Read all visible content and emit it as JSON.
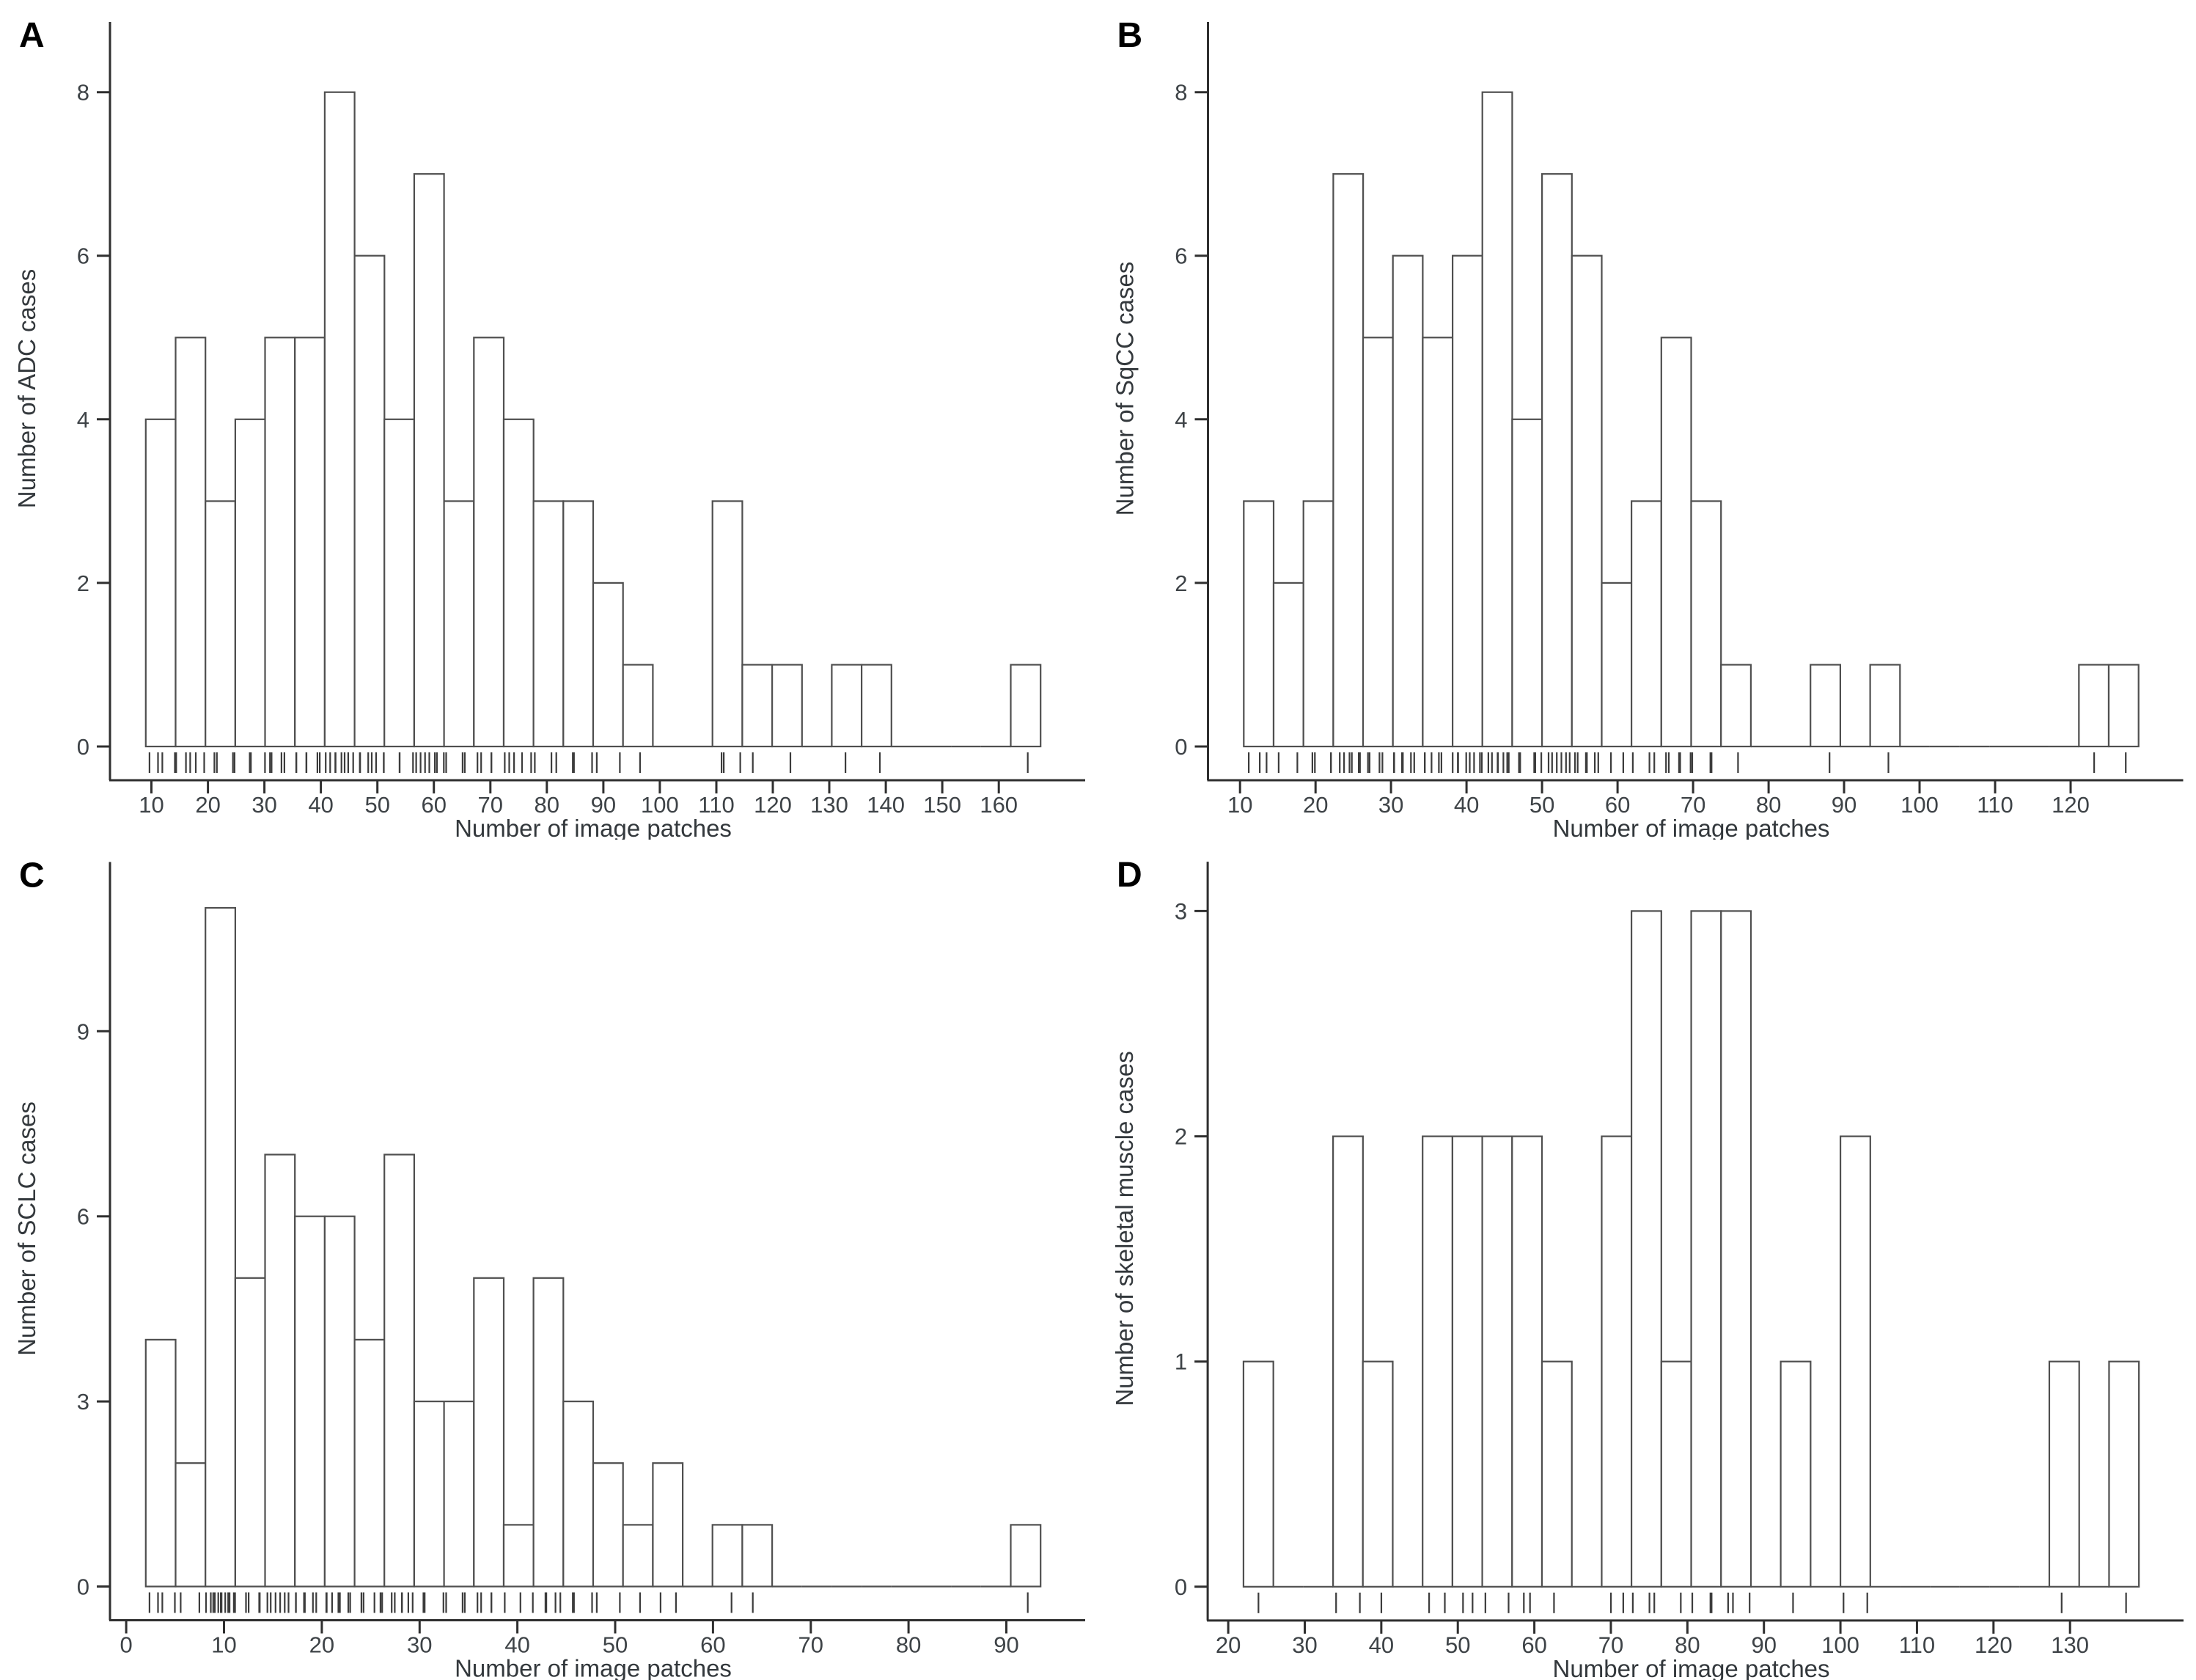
{
  "figure": {
    "title": "",
    "layout": "2x2-histogram-grid",
    "colors": {
      "background": "#ffffff",
      "bar_fill": "#ffffff",
      "bar_stroke": "#4f4f4f",
      "axis_line": "#2f2f2f",
      "tick_text": "#3e4347",
      "axis_title_text": "#33383c",
      "rug_mark": "#3c3c3c",
      "panel_letter": "#000000"
    }
  },
  "chart_data": [
    {
      "type": "bar",
      "subtype": "histogram",
      "panel_letter": "A",
      "xlabel": "Number of image patches",
      "ylabel": "Number of ADC cases",
      "bin_start": 9,
      "bin_width": 5.28,
      "counts": [
        4,
        5,
        3,
        4,
        5,
        5,
        8,
        6,
        4,
        7,
        3,
        5,
        4,
        3,
        3,
        2,
        1,
        0,
        0,
        3,
        1,
        1,
        0,
        1,
        1,
        0,
        0,
        0,
        0,
        1
      ],
      "x_ticks": [
        10,
        20,
        30,
        40,
        50,
        60,
        70,
        80,
        90,
        100,
        110,
        120,
        130,
        140,
        150,
        160
      ],
      "y_ticks": [
        0,
        2,
        4,
        6,
        8
      ],
      "y_domain": [
        0,
        8.75
      ],
      "rug": true,
      "grid": false,
      "legend": "none"
    },
    {
      "type": "bar",
      "subtype": "histogram",
      "panel_letter": "B",
      "xlabel": "Number of image patches",
      "ylabel": "Number of SqCC cases",
      "bin_start": 10.5,
      "bin_width": 3.95,
      "counts": [
        3,
        2,
        3,
        7,
        5,
        6,
        5,
        6,
        8,
        4,
        7,
        6,
        2,
        3,
        5,
        3,
        1,
        0,
        0,
        1,
        0,
        1,
        0,
        0,
        0,
        0,
        0,
        0,
        1,
        1
      ],
      "x_ticks": [
        10,
        20,
        30,
        40,
        50,
        60,
        70,
        80,
        90,
        100,
        110,
        120
      ],
      "y_ticks": [
        0,
        2,
        4,
        6,
        8
      ],
      "y_domain": [
        0,
        8.75
      ],
      "rug": true,
      "grid": false,
      "legend": "none"
    },
    {
      "type": "bar",
      "subtype": "histogram",
      "panel_letter": "C",
      "xlabel": "Number of image patches",
      "ylabel": "Number of SCLC cases",
      "bin_start": 2,
      "bin_width": 3.05,
      "counts": [
        4,
        2,
        11,
        5,
        7,
        6,
        6,
        4,
        7,
        3,
        3,
        5,
        1,
        5,
        3,
        2,
        1,
        2,
        0,
        1,
        1,
        0,
        0,
        0,
        0,
        0,
        0,
        0,
        0,
        1
      ],
      "x_ticks": [
        0,
        10,
        20,
        30,
        40,
        50,
        60,
        70,
        80,
        90
      ],
      "y_ticks": [
        0,
        3,
        6,
        9
      ],
      "y_domain": [
        0,
        11.6
      ],
      "rug": true,
      "grid": false,
      "legend": "none"
    },
    {
      "type": "bar",
      "subtype": "histogram",
      "panel_letter": "D",
      "xlabel": "Number of image patches",
      "ylabel": "Number of skeletal muscle cases",
      "bin_start": 22,
      "bin_width": 3.9,
      "counts": [
        1,
        0,
        0,
        2,
        1,
        0,
        2,
        2,
        2,
        2,
        1,
        0,
        2,
        3,
        1,
        3,
        3,
        0,
        1,
        0,
        2,
        0,
        0,
        0,
        0,
        0,
        0,
        1,
        0,
        1
      ],
      "x_ticks": [
        20,
        30,
        40,
        50,
        60,
        70,
        80,
        90,
        100,
        110,
        120,
        130
      ],
      "y_ticks": [
        0,
        1,
        2,
        3
      ],
      "y_domain": [
        0,
        3.18
      ],
      "rug": true,
      "grid": false,
      "legend": "none"
    }
  ]
}
